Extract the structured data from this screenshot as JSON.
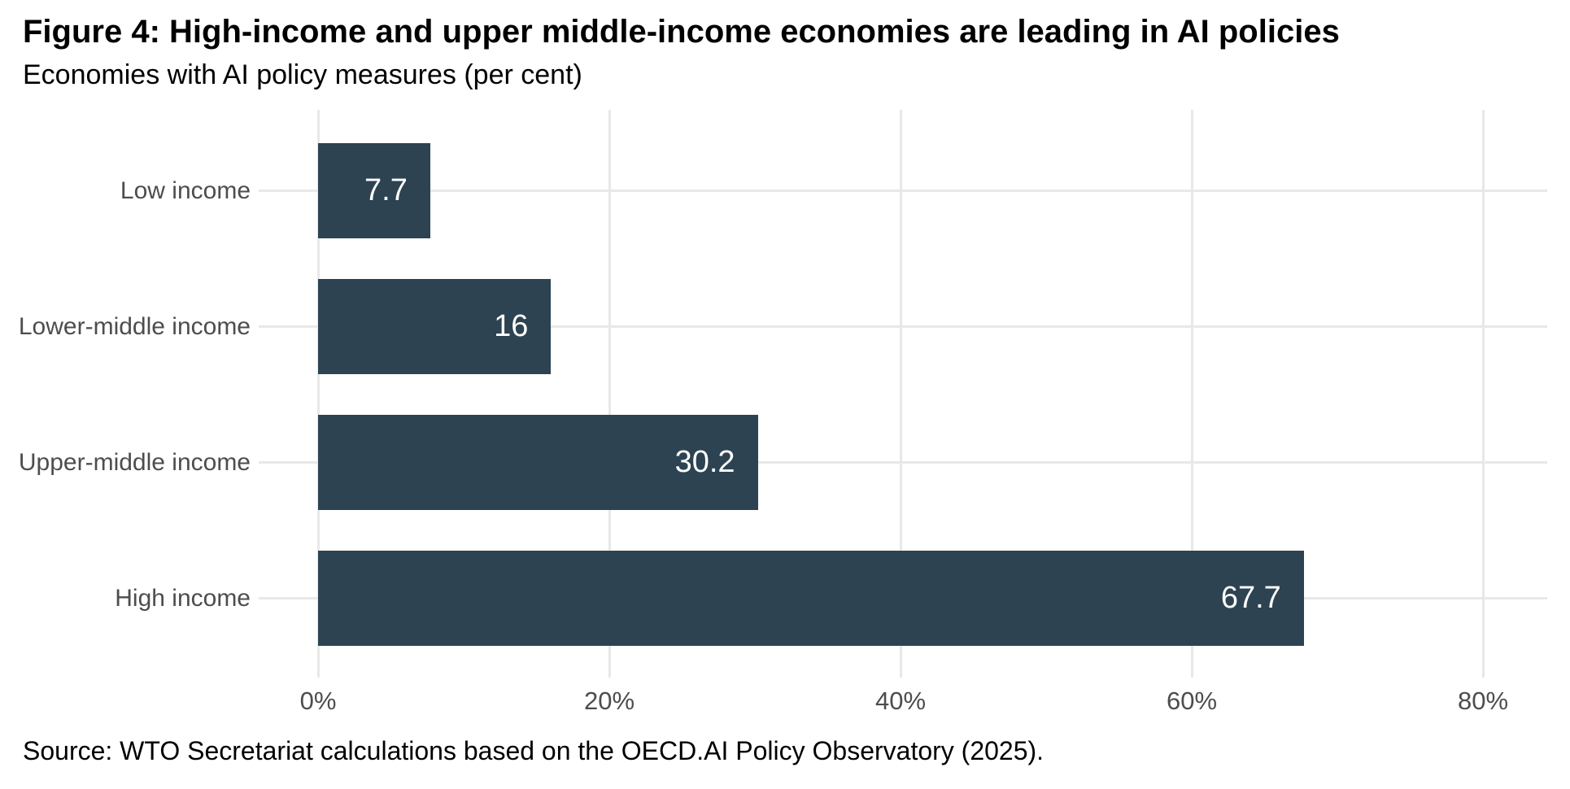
{
  "colors": {
    "bar": "#2d4351",
    "gridline": "#e8e8e8",
    "axis_text": "#4d4d4d",
    "title_text": "#000000",
    "value_label": "#ffffff",
    "background": "#ffffff"
  },
  "chart_data": {
    "type": "bar",
    "orientation": "horizontal",
    "title": "Figure 4: High-income and upper middle-income economies are leading in AI policies",
    "subtitle": "Economies with AI policy measures (per cent)",
    "source": "Source: WTO Secretariat calculations based on the OECD.AI Policy Observatory (2025).",
    "categories": [
      "Low income",
      "Lower-middle income",
      "Upper-middle income",
      "High income"
    ],
    "values": [
      7.7,
      16,
      30.2,
      67.7
    ],
    "value_labels": [
      "7.7",
      "16",
      "30.2",
      "67.7"
    ],
    "x_ticks": [
      0,
      20,
      40,
      60,
      80
    ],
    "x_tick_labels": [
      "0%",
      "20%",
      "40%",
      "60%",
      "80%"
    ],
    "xlabel": "",
    "ylabel": "",
    "xlim": [
      0,
      80
    ],
    "grid": "both",
    "legend": "none"
  }
}
